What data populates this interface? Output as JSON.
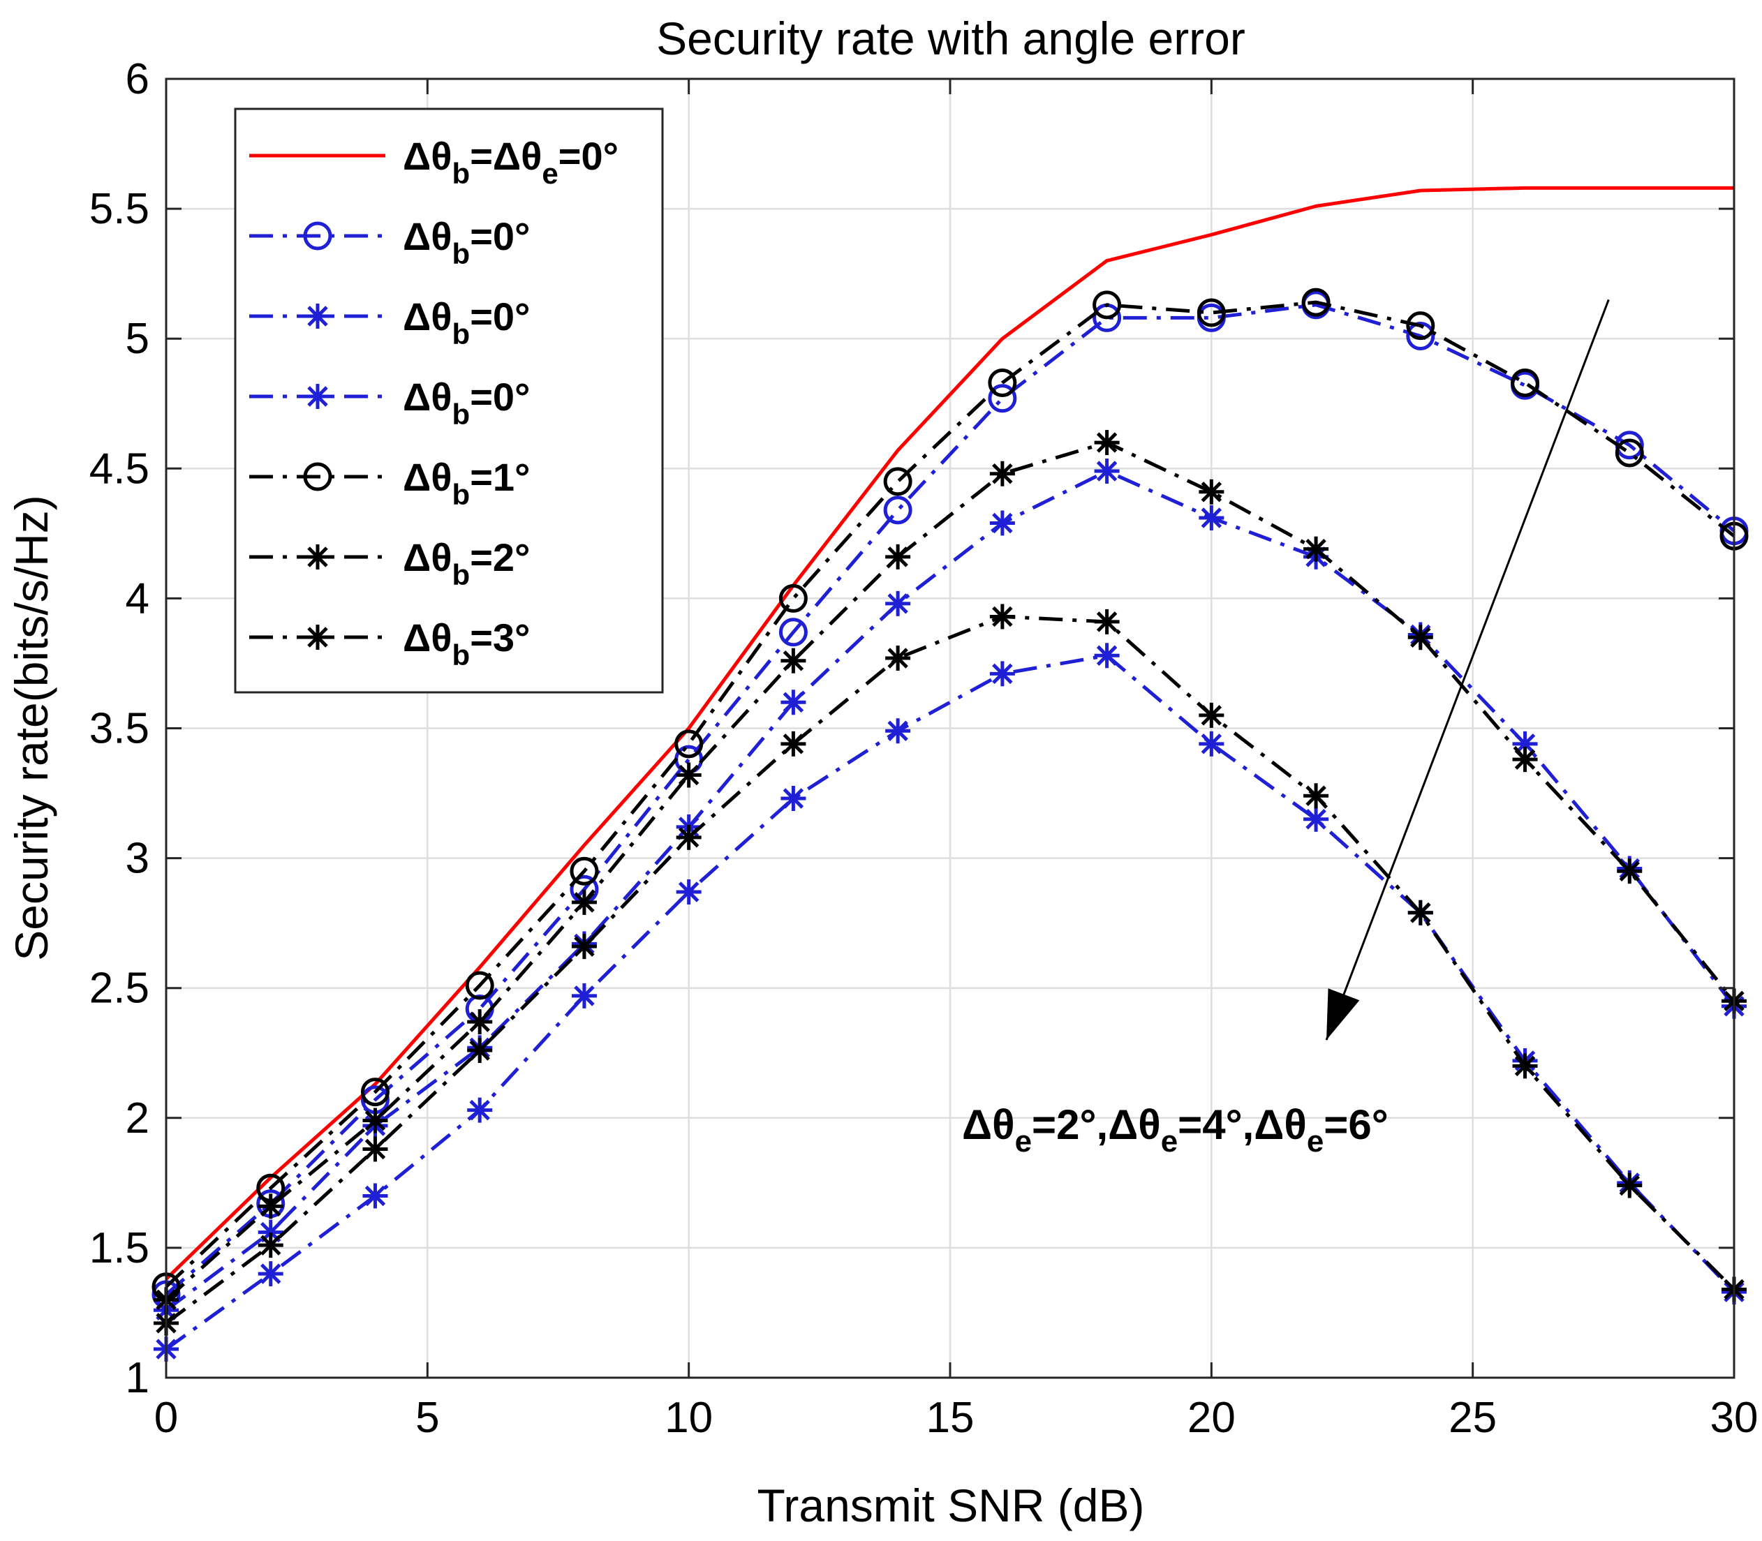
{
  "chart_data": {
    "type": "line",
    "title": "Security rate with angle error",
    "xlabel": "Transmit SNR (dB)",
    "ylabel": "Security rate(bits/s/Hz)",
    "xlim": [
      0,
      30
    ],
    "ylim": [
      1,
      6
    ],
    "xticks": [
      "0",
      "5",
      "10",
      "15",
      "20",
      "25",
      "30"
    ],
    "yticks": [
      "1",
      "1.5",
      "2",
      "2.5",
      "3",
      "3.5",
      "4",
      "4.5",
      "5",
      "5.5",
      "6"
    ],
    "grid": true,
    "legend_position": "top-left",
    "x": [
      0,
      2,
      4,
      6,
      8,
      10,
      12,
      14,
      16,
      18,
      20,
      22,
      24,
      26,
      28,
      30
    ],
    "series": [
      {
        "name": "Δθb=Δθe=0°",
        "legend": {
          "pre": "Δθ",
          "sub1": "b",
          "mid": "=Δθ",
          "sub2": "e",
          "post": "=0°"
        },
        "color": "#ff0000",
        "dash": "solid",
        "marker": "none",
        "values": [
          1.38,
          1.77,
          2.13,
          2.58,
          3.05,
          3.5,
          4.05,
          4.57,
          5.0,
          5.3,
          5.4,
          5.51,
          5.57,
          5.58,
          5.58,
          5.58
        ]
      },
      {
        "name": "Δθb=0° (circle)",
        "legend": {
          "pre": "Δθ",
          "sub1": "b",
          "post": "=0°"
        },
        "color": "#1f1fd6",
        "dash": "dashdot",
        "marker": "circle",
        "values": [
          1.32,
          1.67,
          2.07,
          2.42,
          2.88,
          3.38,
          3.87,
          4.34,
          4.77,
          5.08,
          5.08,
          5.13,
          5.01,
          4.82,
          4.59,
          4.26
        ]
      },
      {
        "name": "Δθb=0° (star, group 1)",
        "legend": {
          "pre": "Δθ",
          "sub1": "b",
          "post": "=0°"
        },
        "color": "#1f1fd6",
        "dash": "dashdot",
        "marker": "star",
        "values": [
          1.26,
          1.56,
          1.97,
          2.27,
          2.67,
          3.12,
          3.6,
          3.98,
          4.29,
          4.49,
          4.31,
          4.16,
          3.86,
          3.44,
          2.96,
          2.43
        ]
      },
      {
        "name": "Δθb=0° (star, group 2)",
        "legend": {
          "pre": "Δθ",
          "sub1": "b",
          "post": "=0°"
        },
        "color": "#1f1fd6",
        "dash": "dashdot",
        "marker": "star",
        "values": [
          1.11,
          1.4,
          1.7,
          2.03,
          2.47,
          2.87,
          3.23,
          3.49,
          3.71,
          3.78,
          3.44,
          3.15,
          2.79,
          2.22,
          1.75,
          1.33
        ]
      },
      {
        "name": "Δθb=1°",
        "legend": {
          "pre": "Δθ",
          "sub1": "b",
          "post": "=1°"
        },
        "color": "#000000",
        "dash": "dashdot",
        "marker": "circle",
        "values": [
          1.35,
          1.73,
          2.1,
          2.51,
          2.95,
          3.44,
          4.0,
          4.45,
          4.83,
          5.13,
          5.1,
          5.14,
          5.05,
          4.83,
          4.56,
          4.24
        ]
      },
      {
        "name": "Δθb=2°",
        "legend": {
          "pre": "Δθ",
          "sub1": "b",
          "post": "=2°"
        },
        "color": "#000000",
        "dash": "dashdot",
        "marker": "star",
        "values": [
          1.3,
          1.66,
          1.99,
          2.37,
          2.83,
          3.32,
          3.76,
          4.16,
          4.48,
          4.6,
          4.41,
          4.19,
          3.85,
          3.38,
          2.95,
          2.45
        ]
      },
      {
        "name": "Δθb=3°",
        "legend": {
          "pre": "Δθ",
          "sub1": "b",
          "post": "=3°"
        },
        "color": "#000000",
        "dash": "dashdot",
        "marker": "star",
        "values": [
          1.21,
          1.51,
          1.88,
          2.26,
          2.66,
          3.08,
          3.44,
          3.77,
          3.93,
          3.91,
          3.55,
          3.24,
          2.79,
          2.2,
          1.74,
          1.34
        ]
      }
    ],
    "annotation": {
      "parts": [
        {
          "t": "Δθ",
          "sub": "e"
        },
        {
          "t": "=2°,Δθ",
          "sub": "e"
        },
        {
          "t": "=4°,Δθ",
          "sub": "e"
        },
        {
          "t": "=6°",
          "sub": ""
        }
      ],
      "arrow_from": [
        27.6,
        5.15
      ],
      "arrow_to": [
        22.2,
        2.3
      ]
    }
  }
}
